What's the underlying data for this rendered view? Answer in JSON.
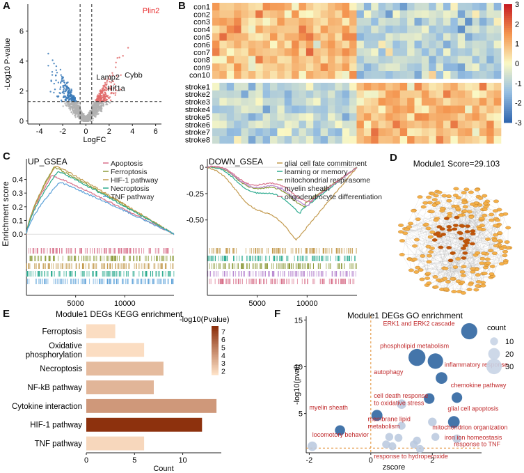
{
  "panels": {
    "a": {
      "label": "A"
    },
    "b": {
      "label": "B"
    },
    "c": {
      "label": "C"
    },
    "d": {
      "label": "D"
    },
    "e": {
      "label": "E"
    },
    "f": {
      "label": "F"
    }
  },
  "colors": {
    "up": "#e06a6a",
    "down": "#3a7ab8",
    "ns": "#b0b0b0",
    "highlight": "#e8282a",
    "gsea_red": "#d8708a",
    "gsea_olive": "#8c9a3a",
    "gsea_gold": "#c39a4e",
    "gsea_teal": "#2aaa8e",
    "gsea_purple": "#b888d0",
    "gsea_blue": "#5aa0d8",
    "kegg_light": "#fde0c5",
    "kegg_dark": "#8b2e0a",
    "go_dot": "#3a6ea5",
    "go_label": "#c0282a",
    "network_node": "#f4b04a",
    "network_core": "#c0540a"
  },
  "chart_data": [
    {
      "id": "volcano",
      "type": "scatter",
      "title": "",
      "xlabel": "LogFC",
      "ylabel": "-Log10 P-value",
      "xlim": [
        -5,
        6.5
      ],
      "ylim": [
        -0.2,
        7.8
      ],
      "x_ticks": [
        -4,
        -2,
        0,
        2,
        4,
        6
      ],
      "y_ticks": [
        0,
        2,
        4,
        6
      ],
      "vlines": [
        -0.5,
        0.5
      ],
      "hline": 1.3,
      "labels": [
        {
          "text": "Plin2",
          "x": 5.6,
          "y": 7.2,
          "highlight": true
        },
        {
          "text": "Lamp2",
          "x": 1.9,
          "y": 2.75,
          "highlight": false
        },
        {
          "text": "Cybb",
          "x": 4.1,
          "y": 2.9,
          "highlight": false
        },
        {
          "text": "Hif1a",
          "x": 2.6,
          "y": 2.0,
          "highlight": false
        }
      ]
    },
    {
      "id": "heatmap",
      "type": "heatmap",
      "rows": [
        "con1",
        "con2",
        "con3",
        "con4",
        "con5",
        "con6",
        "con7",
        "con8",
        "con9",
        "con10",
        "stroke1",
        "stroke2",
        "stroke3",
        "stroke4",
        "stroke5",
        "stroke6",
        "stroke7",
        "stroke8"
      ],
      "n_columns": 40,
      "color_range": [
        -3,
        3
      ],
      "legend_ticks": [
        3,
        2,
        1,
        0,
        -1,
        -2,
        -3
      ]
    },
    {
      "id": "up_gsea",
      "type": "line",
      "title": "UP_GSEA",
      "ylabel": "Enrichment score",
      "xlim": [
        0,
        15000
      ],
      "ylim": [
        -0.05,
        0.55
      ],
      "x_ticks": [
        5000,
        10000
      ],
      "y_ticks": [
        0.0,
        0.1,
        0.2,
        0.3,
        0.4
      ],
      "series": [
        {
          "name": "Apoptosis",
          "color": "#d8708a",
          "peak": 0.43
        },
        {
          "name": "Ferroptosis",
          "color": "#8c9a3a",
          "peak": 0.49
        },
        {
          "name": "HIF-1 pathway",
          "color": "#c39a4e",
          "peak": 0.5
        },
        {
          "name": "Necroptosis",
          "color": "#2aaa8e",
          "peak": 0.46
        },
        {
          "name": "TNF pathway",
          "color": "#5aa0d8",
          "peak": 0.38
        }
      ]
    },
    {
      "id": "down_gsea",
      "type": "line",
      "title": "DOWN_GSEA",
      "ylabel": "",
      "xlim": [
        0,
        15000
      ],
      "ylim": [
        -0.7,
        0.08
      ],
      "x_ticks": [
        5000,
        10000
      ],
      "y_ticks": [
        0.0,
        -0.25,
        -0.5
      ],
      "y_tick_labels": [
        "0",
        "-0.25",
        "-0.50"
      ],
      "series": [
        {
          "name": "glial cell fate commitment",
          "color": "#c39a4e",
          "trough": -0.68
        },
        {
          "name": "learning or memory",
          "color": "#2aaa8e",
          "trough": -0.41
        },
        {
          "name": "mitochondrial respirasome",
          "color": "#8c9a3a",
          "trough": -0.34
        },
        {
          "name": "myelin sheath",
          "color": "#b888d0",
          "trough": -0.33
        },
        {
          "name": "oligodendrocyte differentiation",
          "color": "#d8708a",
          "trough": -0.3
        }
      ]
    },
    {
      "id": "network",
      "type": "diagram",
      "title": "Module1 Score=29.103"
    },
    {
      "id": "kegg",
      "type": "bar",
      "title": "Module1 DEGs KEGG enrichment",
      "xlabel": "Count",
      "legend_title": "-log10(Pvalue)",
      "legend_ticks": [
        7,
        6,
        5,
        4,
        3,
        2
      ],
      "xlim": [
        0,
        14
      ],
      "x_ticks": [
        0,
        5,
        10
      ],
      "categories": [
        "Ferroptosis",
        "Oxidative phosphorylation",
        "Necroptosis",
        "NF-kB pathway",
        "Cytokine interaction",
        "HIF-1 pathway",
        "TNF pathway"
      ],
      "category_lines": [
        [
          "Ferroptosis"
        ],
        [
          "Oxidative",
          "phosphorylation"
        ],
        [
          "Necroptosis"
        ],
        [
          "NF-kB pathway"
        ],
        [
          "Cytokine interaction"
        ],
        [
          "HIF-1 pathway"
        ],
        [
          "TNF pathway"
        ]
      ],
      "values": [
        3,
        6,
        8,
        7,
        13.5,
        12,
        6
      ],
      "neglog10p": [
        1.6,
        1.6,
        2.8,
        3.0,
        4.0,
        7.6,
        1.8
      ]
    },
    {
      "id": "go",
      "type": "scatter",
      "title": "Module1 DEGs GO enrichment",
      "xlabel": "zscore",
      "ylabel": "-log10(pval)",
      "xlim": [
        -2.1,
        3.6
      ],
      "ylim": [
        0.8,
        15.4
      ],
      "x_ticks": [
        -2,
        0,
        2
      ],
      "y_ticks": [
        5,
        10,
        15
      ],
      "size_legend_title": "count",
      "size_legend": [
        10,
        20,
        30
      ],
      "vline": 0,
      "hline": 1.3,
      "points": [
        {
          "x": 3.2,
          "y": 13.8,
          "count": 32
        },
        {
          "x": 1.5,
          "y": 11.0,
          "count": 34
        },
        {
          "x": 2.1,
          "y": 10.6,
          "count": 30
        },
        {
          "x": 2.3,
          "y": 8.8,
          "count": 20
        },
        {
          "x": 2.8,
          "y": 6.7,
          "count": 17
        },
        {
          "x": 1.9,
          "y": 6.6,
          "count": 17
        },
        {
          "x": 1.0,
          "y": 6.0,
          "count": 14
        },
        {
          "x": 0.2,
          "y": 4.8,
          "count": 18
        },
        {
          "x": 2.7,
          "y": 4.1,
          "count": 20
        },
        {
          "x": 2.0,
          "y": 4.1,
          "count": 12
        },
        {
          "x": 1.0,
          "y": 3.7,
          "count": 10
        },
        {
          "x": -1.0,
          "y": 3.2,
          "count": 16
        },
        {
          "x": 0.6,
          "y": 2.5,
          "count": 10
        },
        {
          "x": 0.9,
          "y": 2.4,
          "count": 10
        },
        {
          "x": 2.1,
          "y": 2.5,
          "count": 10
        },
        {
          "x": 2.8,
          "y": 2.3,
          "count": 12
        },
        {
          "x": 1.5,
          "y": 2.1,
          "count": 10
        },
        {
          "x": -1.9,
          "y": 1.5,
          "count": 14
        },
        {
          "x": 0.7,
          "y": 1.5,
          "count": 10
        },
        {
          "x": 1.4,
          "y": 1.7,
          "count": 10
        },
        {
          "x": 1.6,
          "y": 1.2,
          "count": 10
        },
        {
          "x": 0.5,
          "y": 1.7,
          "count": 10
        }
      ],
      "annotations": [
        {
          "text": "ERK1 and ERK2 cascade",
          "tx": 0.4,
          "ty": 14.4
        },
        {
          "text": "phospholipid metabolism",
          "tx": 0.3,
          "ty": 12.0
        },
        {
          "text": "inflammatory response",
          "tx": 2.4,
          "ty": 10.0
        },
        {
          "text": "autophagy",
          "tx": 0.1,
          "ty": 9.2
        },
        {
          "text": "chemokine pathway",
          "tx": 2.6,
          "ty": 7.8
        },
        {
          "text": "cell death response",
          "tx": 0.1,
          "ty": 6.7
        },
        {
          "text": "to oxidative stress",
          "tx": 0.1,
          "ty": 5.9
        },
        {
          "text": "glial cell apoptosis",
          "tx": 2.5,
          "ty": 5.3
        },
        {
          "text": "myelin sheath",
          "tx": -2.0,
          "ty": 5.4
        },
        {
          "text": "membrane lipid",
          "tx": -0.1,
          "ty": 4.2
        },
        {
          "text": "metabolism",
          "tx": -0.1,
          "ty": 3.4
        },
        {
          "text": "mitochondrion organization",
          "tx": 2.0,
          "ty": 3.3
        },
        {
          "text": "locomotory behavior",
          "tx": -1.9,
          "ty": 2.5
        },
        {
          "text": "iron ion homeostasis",
          "tx": 2.4,
          "ty": 2.2
        },
        {
          "text": "response to TNF",
          "tx": 2.7,
          "ty": 1.5
        },
        {
          "text": "response to hydroperoxide",
          "tx": 0.1,
          "ty": 0.2
        }
      ]
    }
  ]
}
